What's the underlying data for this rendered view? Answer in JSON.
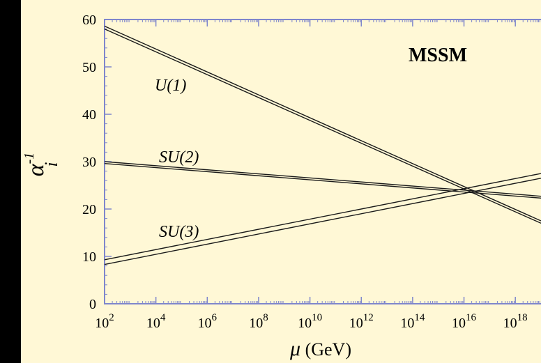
{
  "chart_data": {
    "type": "line",
    "title": "MSSM",
    "xlabel": "GeV",
    "xlabel_symbol": "μ",
    "ylabel_base": "α",
    "ylabel_sub": "i",
    "ylabel_sup": "-1",
    "x_scale": "log10",
    "xlim": [
      100,
      1e+19
    ],
    "ylim": [
      0,
      60
    ],
    "x_ticks": [
      100.0,
      10000.0,
      1000000.0,
      100000000.0,
      10000000000.0,
      1000000000000.0,
      100000000000000.0,
      1e+16,
      1e+18
    ],
    "x_tick_base": "10",
    "x_tick_exponents": [
      "2",
      "4",
      "6",
      "8",
      "10",
      "12",
      "14",
      "16",
      "18"
    ],
    "y_ticks": [
      0,
      10,
      20,
      30,
      40,
      50,
      60
    ],
    "y_tick_labels": [
      "0",
      "10",
      "20",
      "30",
      "40",
      "50",
      "60"
    ],
    "grid": false,
    "series": [
      {
        "name": "U(1)",
        "x": [
          100.0,
          1e+19
        ],
        "y_upper": [
          58.6,
          17.5
        ],
        "y_lower": [
          58.0,
          17.0
        ]
      },
      {
        "name": "SU(2)",
        "x": [
          100.0,
          1e+19
        ],
        "y_upper": [
          30.0,
          22.7
        ],
        "y_lower": [
          29.6,
          22.3
        ]
      },
      {
        "name": "SU(3)",
        "x": [
          100.0,
          1e+19
        ],
        "y_upper": [
          9.3,
          27.5
        ],
        "y_lower": [
          8.3,
          26.5
        ]
      }
    ]
  },
  "colors": {
    "background": "#000000",
    "plot_bg": "#FFF8D6",
    "frame": "#7F86CC",
    "line": "#1A1A1A"
  }
}
